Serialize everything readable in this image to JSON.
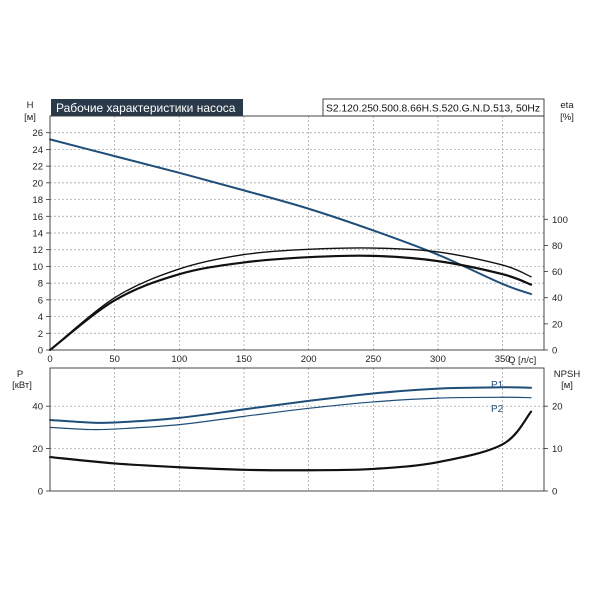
{
  "chart_data": [
    {
      "type": "line",
      "title": "Рабочие характеристики насоса",
      "model_label": "S2.120.250.500.8.66H.S.520.G.N.D.513, 50Hz",
      "y_left_label": "H",
      "y_left_unit": "[м]",
      "y_right_label": "eta",
      "y_right_unit": "[%]",
      "x_label": "Q [л/с]",
      "xlim": [
        0,
        382
      ],
      "ylim_left": [
        0,
        28
      ],
      "ylim_right": [
        0,
        179
      ],
      "x_ticks": [
        0,
        50,
        100,
        150,
        200,
        250,
        300,
        350
      ],
      "y_left_ticks": [
        0,
        2,
        4,
        6,
        8,
        10,
        12,
        14,
        16,
        18,
        20,
        22,
        24,
        26
      ],
      "y_right_ticks": [
        0,
        20,
        40,
        60,
        80,
        100
      ],
      "grid": true,
      "series": [
        {
          "axis": "left",
          "color": "#1f4e79",
          "points": [
            [
              0,
              25.2
            ],
            [
              50,
              23.2
            ],
            [
              100,
              21.2
            ],
            [
              150,
              19.1
            ],
            [
              200,
              16.9
            ],
            [
              250,
              14.3
            ],
            [
              300,
              11.4
            ],
            [
              350,
              7.9
            ],
            [
              372,
              6.7
            ]
          ]
        },
        {
          "axis": "right",
          "color": "#111111",
          "points": [
            [
              0,
              0
            ],
            [
              50,
              38
            ],
            [
              100,
              58
            ],
            [
              150,
              67
            ],
            [
              200,
              71
            ],
            [
              250,
              72
            ],
            [
              300,
              68
            ],
            [
              350,
              58
            ],
            [
              372,
              50
            ]
          ]
        },
        {
          "axis": "right",
          "color": "#111111",
          "points": [
            [
              0,
              0
            ],
            [
              50,
              40
            ],
            [
              100,
              62
            ],
            [
              150,
              73
            ],
            [
              200,
              77
            ],
            [
              250,
              78
            ],
            [
              300,
              75
            ],
            [
              350,
              65
            ],
            [
              372,
              56
            ]
          ]
        }
      ]
    },
    {
      "type": "line",
      "y_left_label": "P",
      "y_left_unit": "[кВт]",
      "y_right_label": "NPSH",
      "y_right_unit": "[м]",
      "xlim": [
        0,
        382
      ],
      "ylim_left": [
        0,
        58
      ],
      "ylim_right": [
        0,
        29
      ],
      "y_left_ticks": [
        0,
        20,
        40
      ],
      "y_right_ticks": [
        0,
        10,
        20
      ],
      "grid": true,
      "series": [
        {
          "name": "P1",
          "axis": "left",
          "color": "#1f4e79",
          "points": [
            [
              0,
              33.5
            ],
            [
              30,
              32.3
            ],
            [
              50,
              32.3
            ],
            [
              100,
              34.5
            ],
            [
              150,
              38.5
            ],
            [
              200,
              42.5
            ],
            [
              250,
              46.0
            ],
            [
              300,
              48.3
            ],
            [
              350,
              48.9
            ],
            [
              372,
              48.7
            ]
          ]
        },
        {
          "name": "P2",
          "axis": "left",
          "color": "#1f4e79",
          "points": [
            [
              0,
              30.0
            ],
            [
              30,
              29.0
            ],
            [
              50,
              29.2
            ],
            [
              100,
              31.3
            ],
            [
              150,
              35.2
            ],
            [
              200,
              39.0
            ],
            [
              250,
              42.0
            ],
            [
              300,
              43.8
            ],
            [
              350,
              44.2
            ],
            [
              372,
              44.0
            ]
          ]
        },
        {
          "axis": "right",
          "color": "#111111",
          "points": [
            [
              0,
              8.0
            ],
            [
              50,
              6.5
            ],
            [
              100,
              5.6
            ],
            [
              150,
              5.0
            ],
            [
              200,
              4.9
            ],
            [
              250,
              5.2
            ],
            [
              300,
              6.8
            ],
            [
              350,
              11.0
            ],
            [
              372,
              18.7
            ]
          ]
        }
      ]
    }
  ]
}
